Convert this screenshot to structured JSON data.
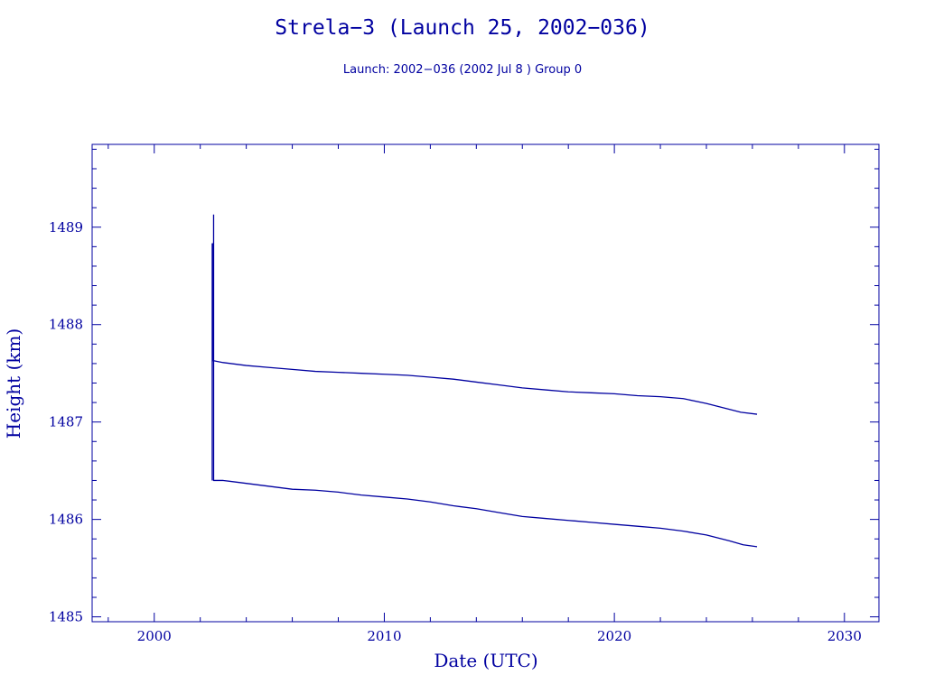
{
  "colors": {
    "ink": "#0000a0",
    "background": "#ffffff"
  },
  "chart_data": {
    "type": "line",
    "title": "Strela−3 (Launch 25, 2002−036)",
    "subtitle": "Launch: 2002−036  (2002 Jul  8 )  Group 0",
    "xlabel": "Date (UTC)",
    "ylabel": "Height (km)",
    "xlim": [
      1997.3,
      2031.5
    ],
    "ylim": [
      1484.95,
      1489.85
    ],
    "x_ticks": [
      2000,
      2010,
      2020,
      2030
    ],
    "y_ticks": [
      1485,
      1486,
      1487,
      1488,
      1489
    ],
    "x_minor_step": 2,
    "y_minor_step": 0.2,
    "grid": false,
    "legend": "none",
    "series": [
      {
        "points": [
          [
            2002.52,
            1486.4
          ],
          [
            2002.52,
            1488.83
          ],
          [
            2002.55,
            1488.83
          ],
          [
            2002.55,
            1487.63
          ],
          [
            2003.0,
            1487.61
          ],
          [
            2004.0,
            1487.58
          ],
          [
            2005.0,
            1487.56
          ],
          [
            2006.0,
            1487.54
          ],
          [
            2007.0,
            1487.52
          ],
          [
            2008.0,
            1487.51
          ],
          [
            2009.0,
            1487.5
          ],
          [
            2010.0,
            1487.49
          ],
          [
            2011.0,
            1487.48
          ],
          [
            2012.0,
            1487.46
          ],
          [
            2013.0,
            1487.44
          ],
          [
            2014.0,
            1487.41
          ],
          [
            2015.0,
            1487.38
          ],
          [
            2016.0,
            1487.35
          ],
          [
            2017.0,
            1487.33
          ],
          [
            2018.0,
            1487.31
          ],
          [
            2019.0,
            1487.3
          ],
          [
            2020.0,
            1487.29
          ],
          [
            2021.0,
            1487.27
          ],
          [
            2022.0,
            1487.26
          ],
          [
            2023.0,
            1487.24
          ],
          [
            2024.0,
            1487.19
          ],
          [
            2025.0,
            1487.13
          ],
          [
            2025.5,
            1487.1
          ],
          [
            2026.2,
            1487.08
          ]
        ]
      },
      {
        "points": [
          [
            2002.58,
            1489.13
          ],
          [
            2002.58,
            1486.4
          ],
          [
            2003.0,
            1486.4
          ],
          [
            2004.0,
            1486.37
          ],
          [
            2005.0,
            1486.34
          ],
          [
            2006.0,
            1486.31
          ],
          [
            2007.0,
            1486.3
          ],
          [
            2008.0,
            1486.28
          ],
          [
            2009.0,
            1486.25
          ],
          [
            2010.0,
            1486.23
          ],
          [
            2011.0,
            1486.21
          ],
          [
            2012.0,
            1486.18
          ],
          [
            2013.0,
            1486.14
          ],
          [
            2014.0,
            1486.11
          ],
          [
            2015.0,
            1486.07
          ],
          [
            2016.0,
            1486.03
          ],
          [
            2017.0,
            1486.01
          ],
          [
            2018.0,
            1485.99
          ],
          [
            2019.0,
            1485.97
          ],
          [
            2020.0,
            1485.95
          ],
          [
            2021.0,
            1485.93
          ],
          [
            2022.0,
            1485.91
          ],
          [
            2023.0,
            1485.88
          ],
          [
            2024.0,
            1485.84
          ],
          [
            2025.0,
            1485.78
          ],
          [
            2025.6,
            1485.74
          ],
          [
            2026.2,
            1485.72
          ]
        ]
      }
    ]
  }
}
